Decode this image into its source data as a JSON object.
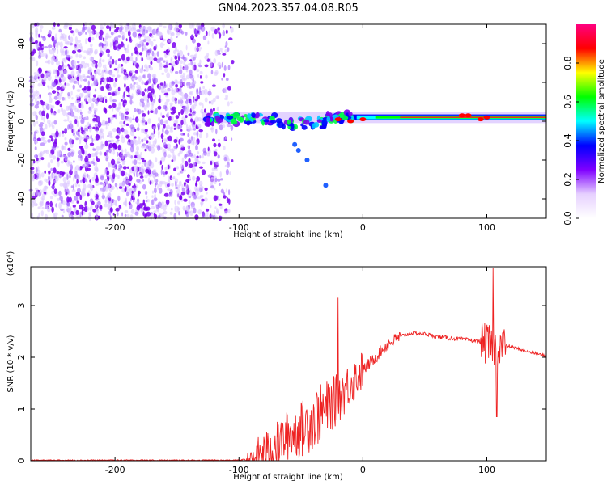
{
  "title": "GN04.2023.357.04.08.R05",
  "chart_data": [
    {
      "type": "heatmap",
      "xlabel": "Height of straight line (km)",
      "ylabel": "Frequency (Hz)",
      "xlim": [
        -268,
        148
      ],
      "ylim": [
        -50,
        50
      ],
      "xticks": [
        -200,
        -100,
        0,
        100
      ],
      "yticks": [
        -40,
        -20,
        0,
        20,
        40
      ],
      "colorbar": {
        "label": "Normalized spectral amplitude",
        "range": [
          0,
          1
        ],
        "ticks": [
          0.0,
          0.2,
          0.4,
          0.6,
          0.8
        ],
        "colors": [
          "#ffffff",
          "#e6d0ff",
          "#7f00ff",
          "#0000ff",
          "#00ffff",
          "#00ff00",
          "#ffff00",
          "#ff0000",
          "#ff0080"
        ]
      },
      "features": {
        "noise_region_x": [
          -268,
          -105
        ],
        "line_frequency_hz": 2,
        "line_start_x": -130
      }
    },
    {
      "type": "line",
      "xlabel": "Height of straight line (km)",
      "ylabel": "SNR (10 * v/v)",
      "multiplier": "(x10⁴)",
      "xlim": [
        -268,
        148
      ],
      "ylim": [
        0,
        3.75
      ],
      "xticks": [
        -200,
        -100,
        0,
        100
      ],
      "yticks": [
        0,
        1,
        2,
        3
      ],
      "color": "#ee2222",
      "x": [
        -268,
        -100,
        -90,
        -80,
        -70,
        -60,
        -50,
        -40,
        -30,
        -20,
        -10,
        0,
        10,
        20,
        30,
        40,
        50,
        60,
        70,
        80,
        90,
        95,
        100,
        105,
        110,
        120,
        130,
        148
      ],
      "values": [
        0.0,
        0.0,
        0.03,
        0.15,
        0.3,
        0.5,
        0.6,
        0.8,
        1.0,
        1.2,
        1.5,
        1.75,
        2.0,
        2.25,
        2.4,
        2.47,
        2.45,
        2.4,
        2.37,
        2.35,
        2.32,
        2.3,
        2.25,
        2.2,
        2.25,
        2.2,
        2.13,
        2.02
      ],
      "spikes": [
        {
          "x": -20,
          "y": 3.15
        },
        {
          "x": 105,
          "y": 3.72
        },
        {
          "x": 108,
          "y": 0.85
        }
      ]
    }
  ]
}
